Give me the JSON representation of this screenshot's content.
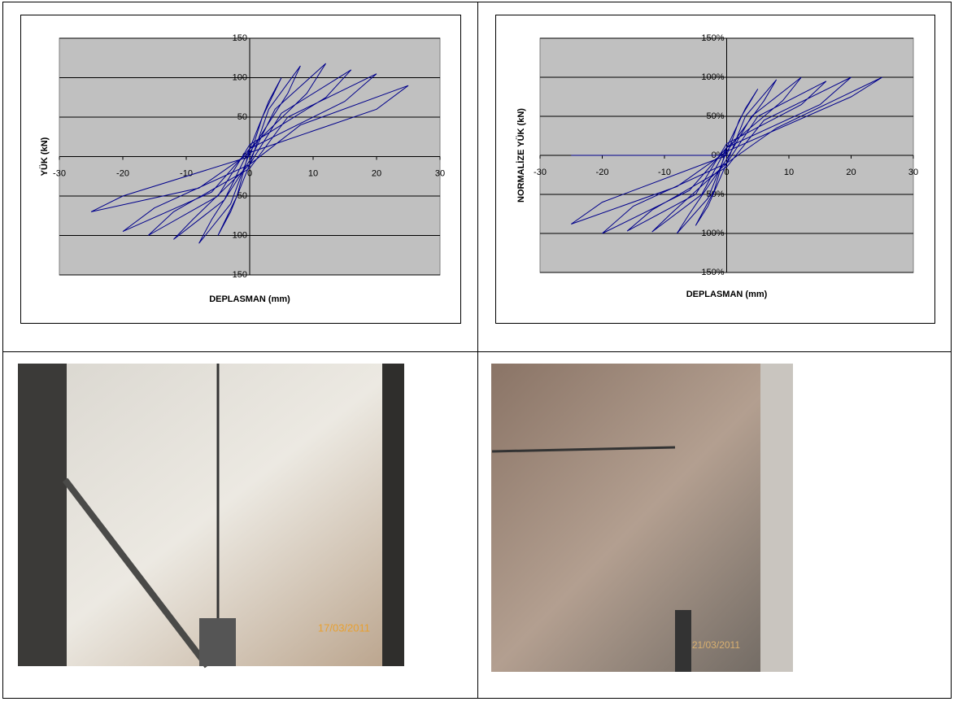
{
  "chart_data": [
    {
      "type": "line",
      "xlabel": "DEPLASMAN (mm)",
      "ylabel": "YÜK (kN)",
      "xlim": [
        -30,
        30
      ],
      "xticks": [
        -30,
        -20,
        -10,
        0,
        10,
        20,
        30
      ],
      "ylim": [
        -150,
        150
      ],
      "yticks": [
        -150,
        -100,
        -50,
        0,
        50,
        100,
        150
      ],
      "grid": true,
      "series": [
        {
          "color": "#00008b",
          "x": [
            0,
            2,
            5,
            3,
            0,
            -2,
            -5,
            -3,
            0,
            3,
            8,
            6,
            0,
            -3,
            -8,
            -6,
            0,
            4,
            12,
            9,
            0,
            -4,
            -12,
            -9,
            0,
            5,
            16,
            12,
            0,
            -5,
            -16,
            -12,
            0,
            6,
            20,
            15,
            0,
            -6,
            -20,
            -15,
            0,
            8,
            25,
            20,
            0,
            -8,
            -25,
            -20,
            0
          ],
          "values": [
            0,
            50,
            100,
            70,
            10,
            -50,
            -100,
            -70,
            -10,
            60,
            115,
            80,
            5,
            -60,
            -110,
            -80,
            -5,
            60,
            118,
            80,
            10,
            -55,
            -105,
            -80,
            -10,
            55,
            110,
            75,
            15,
            -50,
            -100,
            -70,
            -15,
            50,
            105,
            70,
            10,
            -45,
            -95,
            -65,
            -10,
            40,
            90,
            60,
            5,
            -40,
            -70,
            -50,
            0
          ]
        }
      ]
    },
    {
      "type": "line",
      "xlabel": "DEPLASMAN (mm)",
      "ylabel": "NORMALİZE YÜK (kN)",
      "xlim": [
        -30,
        30
      ],
      "xticks": [
        -30,
        -20,
        -10,
        0,
        10,
        20,
        30
      ],
      "ylim": [
        -150,
        150
      ],
      "yticks": [
        {
          "value": -150,
          "label": "-150%"
        },
        {
          "value": -100,
          "label": "-100%"
        },
        {
          "value": -50,
          "label": "-50%"
        },
        {
          "value": 0,
          "label": "0%"
        },
        {
          "value": 50,
          "label": "50%"
        },
        {
          "value": 100,
          "label": "100%"
        },
        {
          "value": 150,
          "label": "150%"
        }
      ],
      "grid": true,
      "series": [
        {
          "color": "#00008b",
          "x": [
            0,
            2,
            5,
            3,
            0,
            -2,
            -5,
            -3,
            0,
            3,
            8,
            6,
            0,
            -3,
            -8,
            -6,
            0,
            4,
            12,
            9,
            0,
            -4,
            -12,
            -9,
            0,
            5,
            16,
            12,
            0,
            -5,
            -16,
            -12,
            0,
            6,
            20,
            15,
            0,
            -6,
            -20,
            -15,
            0,
            8,
            25,
            20,
            0,
            -8,
            -25,
            -20,
            0
          ],
          "values": [
            0,
            45,
            85,
            60,
            10,
            -45,
            -90,
            -65,
            -10,
            50,
            97,
            70,
            5,
            -55,
            -100,
            -75,
            -5,
            50,
            100,
            70,
            10,
            -50,
            -98,
            -75,
            -10,
            50,
            95,
            65,
            15,
            -50,
            -97,
            -70,
            -15,
            45,
            100,
            65,
            10,
            -45,
            -100,
            -65,
            -10,
            35,
            100,
            75,
            5,
            -40,
            -88,
            -60,
            0
          ]
        },
        {
          "color": "#00008b",
          "x": [
            -25,
            0
          ],
          "values": [
            0,
            0
          ]
        }
      ]
    }
  ],
  "photos": [
    {
      "date": "17/03/2011"
    },
    {
      "date": "21/03/2011"
    }
  ]
}
